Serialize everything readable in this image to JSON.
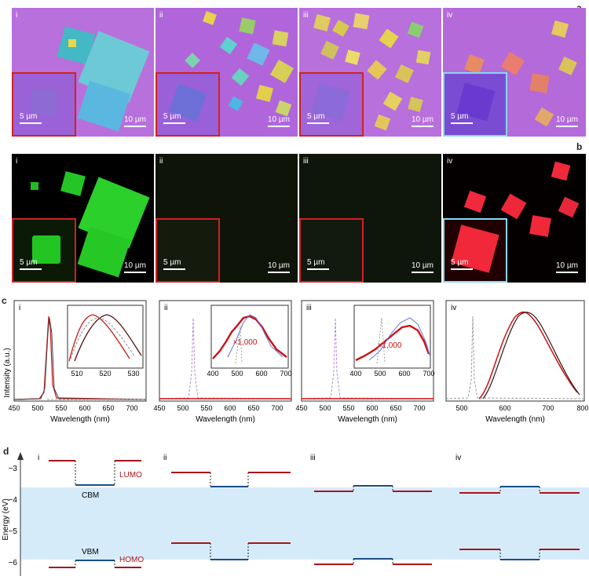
{
  "letters": {
    "a": "a",
    "b": "b",
    "c": "c",
    "d": "d"
  },
  "roman": [
    "i",
    "ii",
    "iii",
    "iv"
  ],
  "scale": {
    "big": "10 µm",
    "small": "5 µm"
  },
  "colors": {
    "purple_bg": "#b46ad8",
    "fluor_green": "#22cc22",
    "fluor_red": "#ff2a3a",
    "inset_red": "#d42020",
    "inset_cyan": "#86d9f2",
    "curve_red": "#cc1111",
    "curve_blue": "#6677dd",
    "band": "#d6ebfa",
    "cbm_blue": "#1a4f86",
    "lumo_red": "#a8141a"
  },
  "panel_c": {
    "ylabel": "Intensity (a.u.)",
    "xlabel": "Wavelength (nm)",
    "xticks": [
      [
        "450",
        "500",
        "550",
        "600",
        "650",
        "700"
      ],
      [
        "450",
        "500",
        "550",
        "600",
        "650",
        "700"
      ],
      [
        "450",
        "500",
        "550",
        "600",
        "650",
        "700"
      ],
      [
        "500",
        "600",
        "700",
        "800"
      ]
    ],
    "inset_i_ticks": [
      "510",
      "520",
      "530"
    ],
    "inset_ticks": [
      "400",
      "500",
      "600",
      "700"
    ],
    "mult": "×1,000"
  },
  "panel_d": {
    "ylabel": "Energy (eV)",
    "yticks": [
      "−3",
      "−4",
      "−5",
      "−6"
    ],
    "labels": {
      "lumo": "LUMO",
      "cbm": "CBM",
      "vbm": "VBM",
      "homo": "HOMO"
    }
  },
  "chart_data": [
    {
      "type": "line",
      "panel": "c-i",
      "xlabel": "Wavelength (nm)",
      "ylabel": "Intensity (a.u.)",
      "xlim": [
        450,
        730
      ],
      "series": [
        {
          "values_peak_nm": [
            521,
            524,
            526
          ]
        }
      ]
    },
    {
      "type": "line",
      "panel": "c-ii",
      "xlabel": "Wavelength (nm)",
      "xlim": [
        450,
        730
      ],
      "annotation": "×1,000"
    },
    {
      "type": "line",
      "panel": "c-iii",
      "xlabel": "Wavelength (nm)",
      "xlim": [
        450,
        730
      ],
      "annotation": "×1,000"
    },
    {
      "type": "line",
      "panel": "c-iv",
      "xlabel": "Wavelength (nm)",
      "xlim": [
        480,
        800
      ],
      "series": [
        {
          "values_peak_nm": [
            662,
            668
          ]
        }
      ]
    },
    {
      "type": "diagram",
      "panel": "d",
      "ylabel": "Energy (eV)",
      "ylim": [
        -6.3,
        -2.6
      ],
      "columns": [
        {
          "label": "i",
          "lumo": -2.85,
          "homo": -6.15,
          "cbm": -3.45,
          "vbm": -5.9
        },
        {
          "label": "ii",
          "lumo": -3.05,
          "homo": -5.35,
          "cbm": -3.45,
          "vbm": -5.9
        },
        {
          "label": "iii",
          "lumo": -3.55,
          "homo": -6.1,
          "cbm": -3.45,
          "vbm": -5.9
        },
        {
          "label": "iv",
          "lumo": -3.6,
          "homo": -5.55,
          "cbm": -3.45,
          "vbm": -5.9
        }
      ]
    }
  ]
}
